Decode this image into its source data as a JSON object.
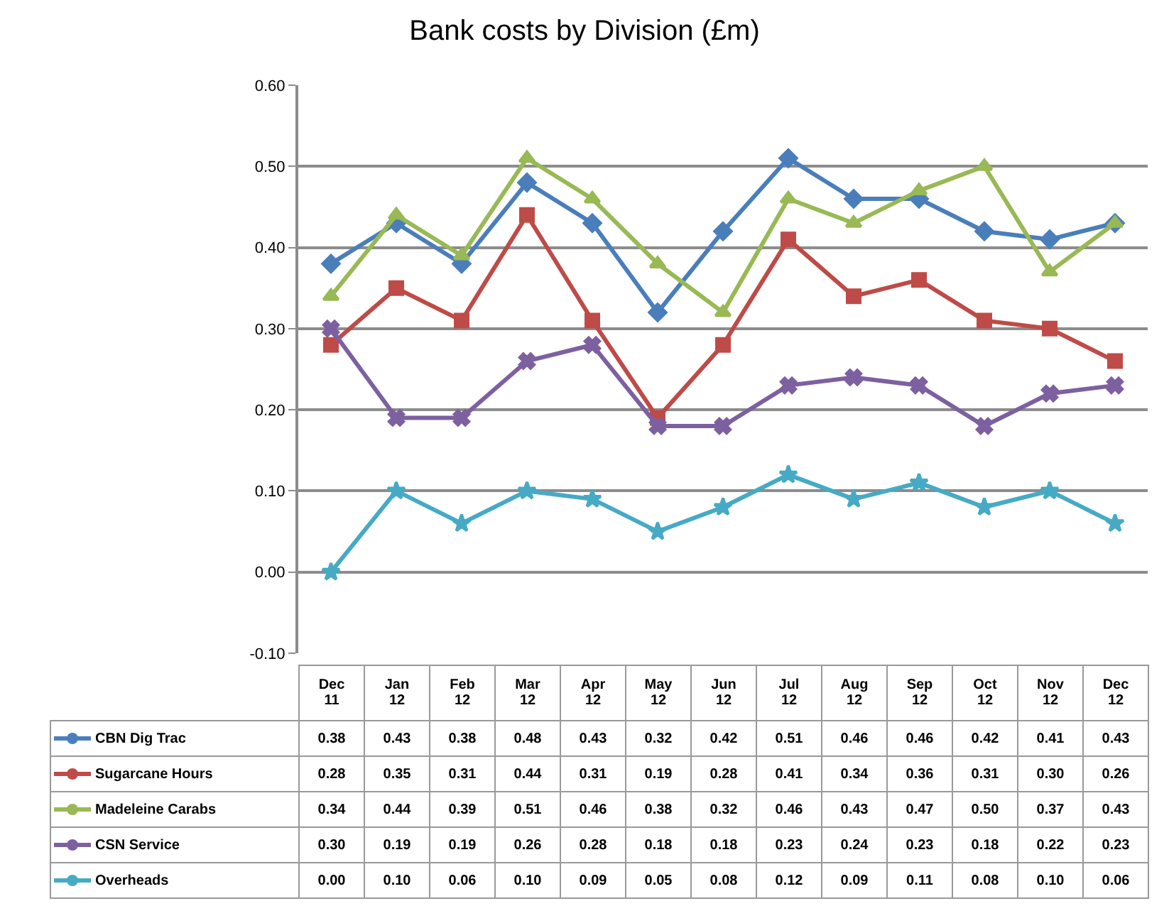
{
  "chart_data": {
    "type": "line",
    "title": "Bank costs by Division (£m)",
    "categories": [
      "Dec 11",
      "Jan 12",
      "Feb 12",
      "Mar 12",
      "Apr 12",
      "May 12",
      "Jun 12",
      "Jul 12",
      "Aug 12",
      "Sep 12",
      "Oct 12",
      "Nov 12",
      "Dec 12"
    ],
    "series": [
      {
        "name": "CBN Dig Trac",
        "color": "#4a7ebb",
        "marker": "diamond",
        "values": [
          0.38,
          0.43,
          0.38,
          0.48,
          0.43,
          0.32,
          0.42,
          0.51,
          0.46,
          0.46,
          0.42,
          0.41,
          0.43
        ],
        "value_labels": [
          "0.38",
          "0.43",
          "0.38",
          "0.48",
          "0.43",
          "0.32",
          "0.42",
          "0.51",
          "0.46",
          "0.46",
          "0.42",
          "0.41",
          "0.43"
        ]
      },
      {
        "name": "Sugarcane Hours",
        "color": "#be4b48",
        "marker": "square",
        "values": [
          0.28,
          0.35,
          0.31,
          0.44,
          0.31,
          0.19,
          0.28,
          0.41,
          0.34,
          0.36,
          0.31,
          0.3,
          0.26
        ],
        "value_labels": [
          "0.28",
          "0.35",
          "0.31",
          "0.44",
          "0.31",
          "0.19",
          "0.28",
          "0.41",
          "0.34",
          "0.36",
          "0.31",
          "0.30",
          "0.26"
        ]
      },
      {
        "name": "Madeleine Carabs",
        "color": "#98b954",
        "marker": "triangle",
        "values": [
          0.34,
          0.44,
          0.39,
          0.51,
          0.46,
          0.38,
          0.32,
          0.46,
          0.43,
          0.47,
          0.5,
          0.37,
          0.43
        ],
        "value_labels": [
          "0.34",
          "0.44",
          "0.39",
          "0.51",
          "0.46",
          "0.38",
          "0.32",
          "0.46",
          "0.43",
          "0.47",
          "0.50",
          "0.37",
          "0.43"
        ]
      },
      {
        "name": "CSN Service",
        "color": "#7d60a0",
        "marker": "cross",
        "values": [
          0.3,
          0.19,
          0.19,
          0.26,
          0.28,
          0.18,
          0.18,
          0.23,
          0.24,
          0.23,
          0.18,
          0.22,
          0.23
        ],
        "value_labels": [
          "0.30",
          "0.19",
          "0.19",
          "0.26",
          "0.28",
          "0.18",
          "0.18",
          "0.23",
          "0.24",
          "0.23",
          "0.18",
          "0.22",
          "0.23"
        ]
      },
      {
        "name": "Overheads",
        "color": "#46aac5",
        "marker": "star",
        "values": [
          0.0,
          0.1,
          0.06,
          0.1,
          0.09,
          0.05,
          0.08,
          0.12,
          0.09,
          0.11,
          0.08,
          0.1,
          0.06
        ],
        "value_labels": [
          "0.00",
          "0.10",
          "0.06",
          "0.10",
          "0.09",
          "0.05",
          "0.08",
          "0.12",
          "0.09",
          "0.11",
          "0.08",
          "0.10",
          "0.06"
        ]
      }
    ],
    "ylim": [
      -0.1,
      0.6
    ],
    "yticks": [
      {
        "value": -0.1,
        "label": "-0.10"
      },
      {
        "value": 0,
        "label": "0.00"
      },
      {
        "value": 0.1,
        "label": "0.10"
      },
      {
        "value": 0.2,
        "label": "0.20"
      },
      {
        "value": 0.3,
        "label": "0.30"
      },
      {
        "value": 0.4,
        "label": "0.40"
      },
      {
        "value": 0.5,
        "label": "0.50"
      },
      {
        "value": 0.6,
        "label": "0.60"
      }
    ],
    "grid": "y",
    "legend": "bottom left",
    "tick_labels": "y",
    "line_style": "solid"
  }
}
